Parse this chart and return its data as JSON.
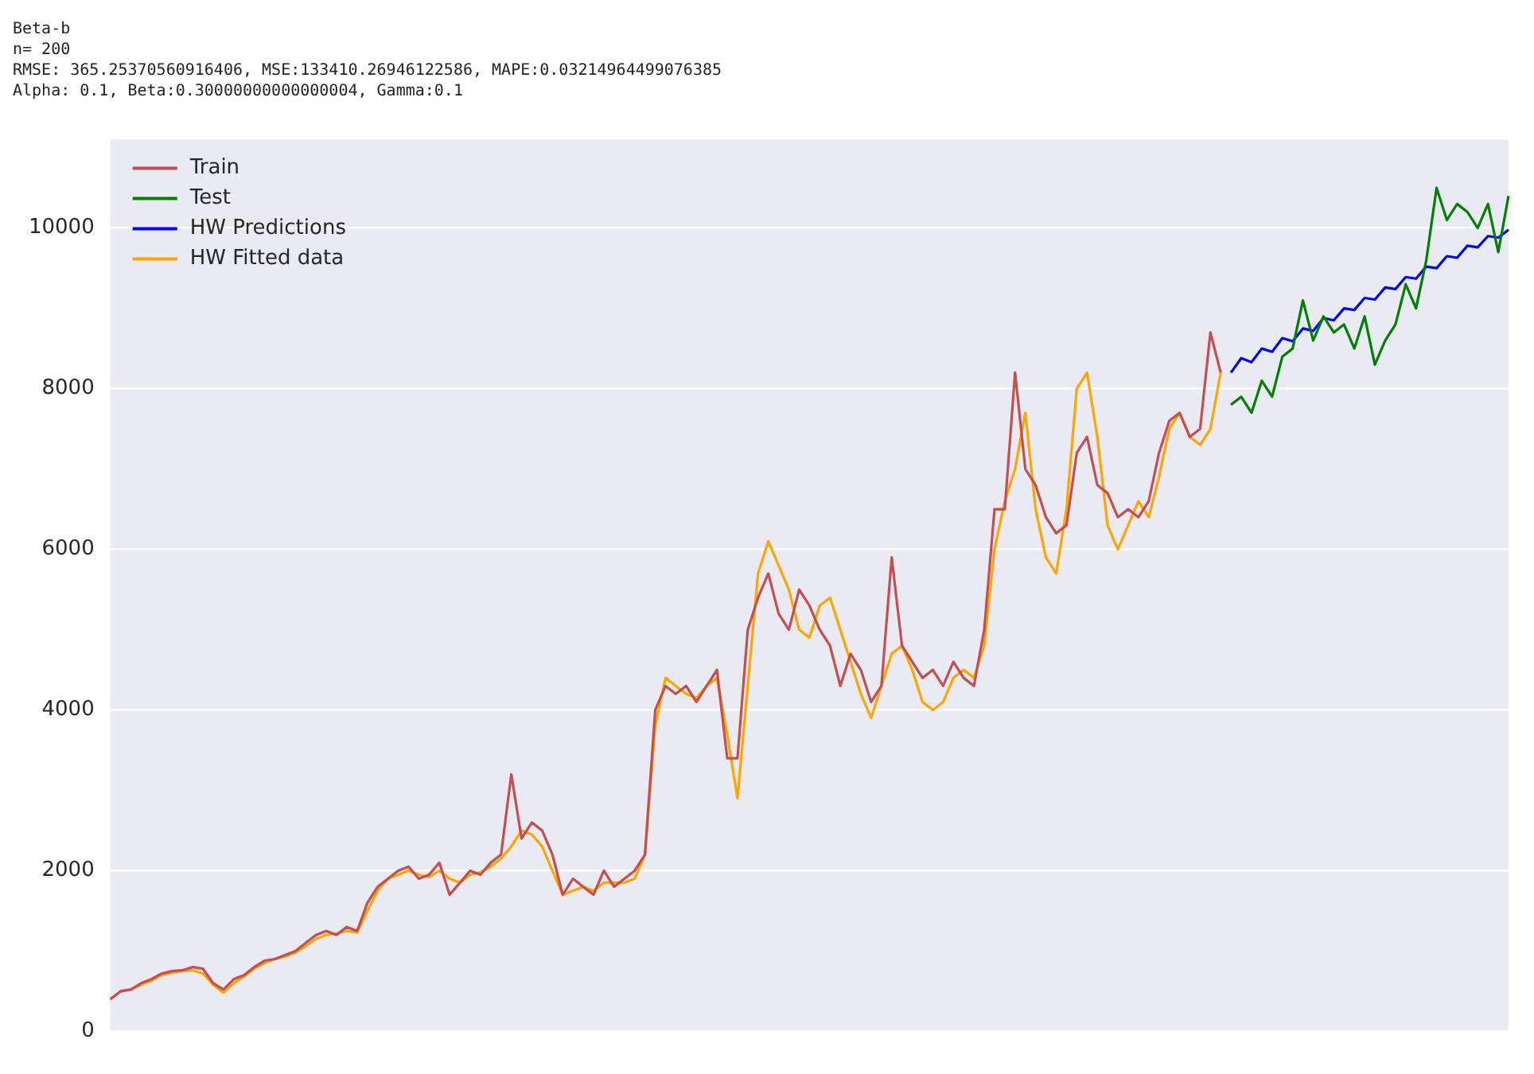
{
  "chart_data": {
    "type": "line",
    "title": "Beta-b",
    "subtitle": "n= 200",
    "annotations": [
      "RMSE: 365.25370560916406, MSE:133410.26946122586, MAPE:0.03214964499076385",
      "Alpha: 0.1, Beta:0.30000000000000004, Gamma:0.1"
    ],
    "categories": [
      null,
      null,
      null,
      null,
      null,
      null,
      null,
      null,
      null,
      null,
      null,
      null,
      null,
      null,
      null,
      null,
      null,
      null,
      null,
      null,
      null,
      null,
      null,
      null,
      null,
      null,
      null,
      null,
      null,
      null,
      null,
      null,
      null,
      null,
      null,
      null,
      null,
      null,
      null,
      null,
      null,
      null,
      null,
      null,
      null,
      null,
      null,
      null,
      null,
      null,
      null,
      null,
      null,
      null,
      null,
      null,
      null,
      null,
      null,
      null,
      null,
      null,
      null,
      null,
      null,
      null,
      null,
      null,
      null,
      null,
      null,
      null,
      null,
      null,
      null,
      null,
      null,
      null,
      null,
      null,
      null,
      null,
      null,
      null,
      null,
      null,
      null,
      null,
      null,
      null,
      null,
      null,
      null,
      null,
      null,
      null,
      null,
      null,
      null,
      null,
      null,
      null,
      null,
      null,
      null,
      null,
      null,
      null,
      null,
      null,
      null,
      null,
      null,
      null,
      null,
      null,
      null,
      null,
      null,
      null,
      null,
      null,
      null,
      null,
      null,
      null,
      null,
      null,
      null,
      null,
      null,
      null,
      null,
      null,
      null,
      null,
      null
    ],
    "series": [
      {
        "name": "Train",
        "color": "#c44e52",
        "values": [
          400,
          500,
          520,
          600,
          650,
          720,
          750,
          760,
          800,
          780,
          600,
          520,
          650,
          700,
          800,
          880,
          900,
          950,
          1000,
          1100,
          1200,
          1250,
          1200,
          1300,
          1250,
          1600,
          1800,
          1900,
          2000,
          2050,
          1900,
          1950,
          2100,
          1700,
          1850,
          2000,
          1950,
          2100,
          2200,
          3200,
          2400,
          2600,
          2500,
          2200,
          1700,
          1900,
          1800,
          1700,
          2000,
          1800,
          1900,
          2000,
          2200,
          4000,
          4300,
          4200,
          4300,
          4100,
          4300,
          4500,
          3400,
          3400,
          5000,
          5400,
          5700,
          5200,
          5000,
          5500,
          5300,
          5000,
          4800,
          4300,
          4700,
          4500,
          4100,
          4300,
          5900,
          4800,
          4600,
          4400,
          4500,
          4300,
          4600,
          4400,
          4300,
          5000,
          6500,
          6500,
          8200,
          7000,
          6800,
          6400,
          6200,
          6300,
          7200,
          7400,
          6800,
          6700,
          6400,
          6500,
          6400,
          6600,
          7200,
          7600,
          7700,
          7400,
          7500,
          8700,
          8200,
          null,
          null,
          null,
          null,
          null,
          null,
          null,
          null,
          null,
          null,
          null,
          null,
          null,
          null,
          null,
          null,
          null,
          null,
          null,
          null,
          null,
          null,
          null,
          null,
          null,
          null,
          null,
          null
        ]
      },
      {
        "name": "Test",
        "color": "#008000",
        "values": [
          null,
          null,
          null,
          null,
          null,
          null,
          null,
          null,
          null,
          null,
          null,
          null,
          null,
          null,
          null,
          null,
          null,
          null,
          null,
          null,
          null,
          null,
          null,
          null,
          null,
          null,
          null,
          null,
          null,
          null,
          null,
          null,
          null,
          null,
          null,
          null,
          null,
          null,
          null,
          null,
          null,
          null,
          null,
          null,
          null,
          null,
          null,
          null,
          null,
          null,
          null,
          null,
          null,
          null,
          null,
          null,
          null,
          null,
          null,
          null,
          null,
          null,
          null,
          null,
          null,
          null,
          null,
          null,
          null,
          null,
          null,
          null,
          null,
          null,
          null,
          null,
          null,
          null,
          null,
          null,
          null,
          null,
          null,
          null,
          null,
          null,
          null,
          null,
          null,
          null,
          null,
          null,
          null,
          null,
          null,
          null,
          null,
          null,
          null,
          null,
          null,
          null,
          null,
          null,
          null,
          null,
          null,
          null,
          null,
          7800,
          7900,
          7700,
          8100,
          7900,
          8400,
          8500,
          9100,
          8600,
          8900,
          8700,
          8800,
          8500,
          8900,
          8300,
          8600,
          8800,
          9300,
          9000,
          9600,
          10500,
          10100,
          10300,
          10200,
          10000,
          10300,
          9700,
          10400
        ]
      },
      {
        "name": "HW Predictions",
        "color": "#0000ff",
        "values": [
          null,
          null,
          null,
          null,
          null,
          null,
          null,
          null,
          null,
          null,
          null,
          null,
          null,
          null,
          null,
          null,
          null,
          null,
          null,
          null,
          null,
          null,
          null,
          null,
          null,
          null,
          null,
          null,
          null,
          null,
          null,
          null,
          null,
          null,
          null,
          null,
          null,
          null,
          null,
          null,
          null,
          null,
          null,
          null,
          null,
          null,
          null,
          null,
          null,
          null,
          null,
          null,
          null,
          null,
          null,
          null,
          null,
          null,
          null,
          null,
          null,
          null,
          null,
          null,
          null,
          null,
          null,
          null,
          null,
          null,
          null,
          null,
          null,
          null,
          null,
          null,
          null,
          null,
          null,
          null,
          null,
          null,
          null,
          null,
          null,
          null,
          null,
          null,
          null,
          null,
          null,
          null,
          null,
          null,
          null,
          null,
          null,
          null,
          null,
          null,
          null,
          null,
          null,
          null,
          null,
          null,
          null,
          null,
          null,
          8200,
          8380,
          8330,
          8500,
          8460,
          8630,
          8590,
          8750,
          8720,
          8880,
          8850,
          9000,
          8980,
          9130,
          9110,
          9260,
          9240,
          9390,
          9370,
          9520,
          9500,
          9650,
          9630,
          9780,
          9760,
          9900,
          9880,
          9980
        ]
      },
      {
        "name": "HW Fitted data",
        "color": "#ffa500",
        "values": [
          400,
          500,
          520,
          580,
          630,
          700,
          730,
          750,
          760,
          720,
          580,
          480,
          600,
          680,
          780,
          850,
          900,
          930,
          980,
          1060,
          1150,
          1200,
          1220,
          1250,
          1230,
          1500,
          1750,
          1900,
          1950,
          2000,
          1950,
          1920,
          2000,
          1900,
          1850,
          1950,
          1980,
          2050,
          2150,
          2300,
          2500,
          2450,
          2300,
          2000,
          1700,
          1750,
          1800,
          1750,
          1850,
          1850,
          1850,
          1900,
          2200,
          3800,
          4400,
          4300,
          4200,
          4150,
          4300,
          4400,
          3700,
          2900,
          4300,
          5700,
          6100,
          5800,
          5500,
          5000,
          4900,
          5300,
          5400,
          5000,
          4600,
          4200,
          3900,
          4300,
          4700,
          4800,
          4500,
          4100,
          4000,
          4100,
          4400,
          4500,
          4400,
          4800,
          6000,
          6600,
          7000,
          7700,
          6500,
          5900,
          5700,
          6500,
          8000,
          8200,
          7400,
          6300,
          6000,
          6300,
          6600,
          6400,
          6900,
          7500,
          7700,
          7400,
          7300,
          7500,
          8200,
          null,
          null,
          null,
          null,
          null,
          null,
          null,
          null,
          null,
          null,
          null,
          null,
          null,
          null,
          null,
          null,
          null,
          null,
          null,
          null,
          null,
          null,
          null,
          null,
          null,
          null,
          null,
          null
        ]
      }
    ],
    "ylim": [
      0,
      11100
    ],
    "yticks": [
      0,
      2000,
      4000,
      6000,
      8000,
      10000
    ],
    "grid": "y",
    "legend": "top left",
    "marker": "none",
    "line_style": "solid"
  }
}
